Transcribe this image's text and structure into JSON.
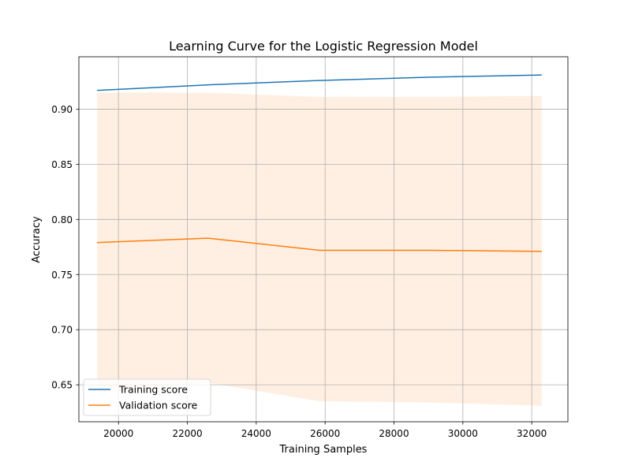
{
  "chart_data": {
    "type": "line",
    "title": "Learning Curve for the Logistic Regression Model",
    "xlabel": "Training Samples",
    "ylabel": "Accuracy",
    "xlim": [
      18850,
      33050
    ],
    "ylim": [
      0.6165,
      0.9475
    ],
    "xticks": [
      20000,
      22000,
      24000,
      26000,
      28000,
      30000,
      32000
    ],
    "yticks": [
      0.65,
      0.7,
      0.75,
      0.8,
      0.85,
      0.9
    ],
    "xtick_labels": [
      "20000",
      "22000",
      "24000",
      "26000",
      "28000",
      "30000",
      "32000"
    ],
    "ytick_labels": [
      "0.65",
      "0.70",
      "0.75",
      "0.80",
      "0.85",
      "0.90"
    ],
    "grid": true,
    "legend": "lower left",
    "x": [
      19380,
      22600,
      25830,
      29060,
      32290
    ],
    "series": [
      {
        "name": "Training score",
        "color": "#1f77b4",
        "values": [
          0.917,
          0.922,
          0.926,
          0.929,
          0.931
        ]
      },
      {
        "name": "Validation score",
        "color": "#ff7f0e",
        "values": [
          0.779,
          0.783,
          0.772,
          0.772,
          0.771
        ],
        "band_upper": [
          0.915,
          0.915,
          0.911,
          0.911,
          0.912
        ],
        "band_lower": [
          0.643,
          0.652,
          0.635,
          0.634,
          0.631
        ],
        "band_color": "#ff7f0e"
      }
    ]
  }
}
